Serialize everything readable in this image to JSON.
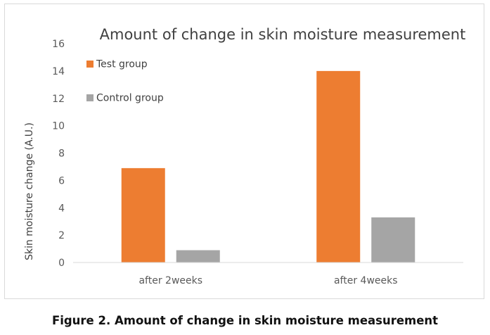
{
  "chart_data": {
    "type": "bar",
    "title": "Amount of change in skin moisture measurement",
    "xlabel": "",
    "ylabel": "Skin moisture change (A.U.)",
    "categories": [
      "after 2weeks",
      "after 4weeks"
    ],
    "series": [
      {
        "name": "Test group",
        "values": [
          6.9,
          14.0
        ],
        "color": "#ed7d31"
      },
      {
        "name": "Control group",
        "values": [
          0.9,
          3.3
        ],
        "color": "#a5a5a5"
      }
    ],
    "ylim": [
      0,
      16
    ],
    "yticks": [
      0,
      2,
      4,
      6,
      8,
      10,
      12,
      14,
      16
    ],
    "grid": false,
    "legend": "top-left"
  },
  "figure": {
    "caption": "Figure 2. Amount of change in skin moisture measurement"
  }
}
